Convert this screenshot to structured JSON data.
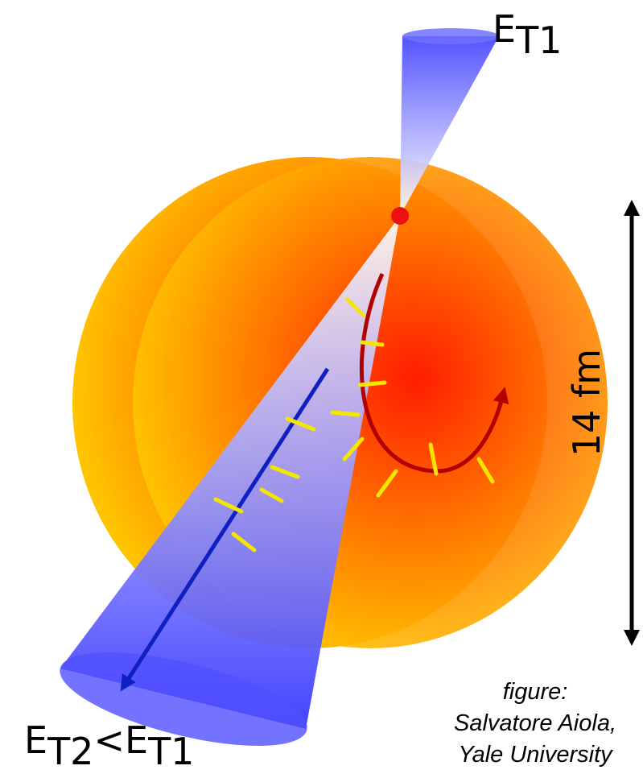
{
  "jet_top": {
    "symbol": "E",
    "subscript": "T1"
  },
  "jet_bottom": {
    "symbol": "E",
    "subscript": "T2",
    "relation": "<",
    "compare_symbol": "E",
    "compare_subscript": "T1"
  },
  "scale": {
    "label": "14 fm"
  },
  "credit": {
    "lines": [
      "figure:",
      "Salvatore Aiola,",
      "Yale University"
    ]
  }
}
